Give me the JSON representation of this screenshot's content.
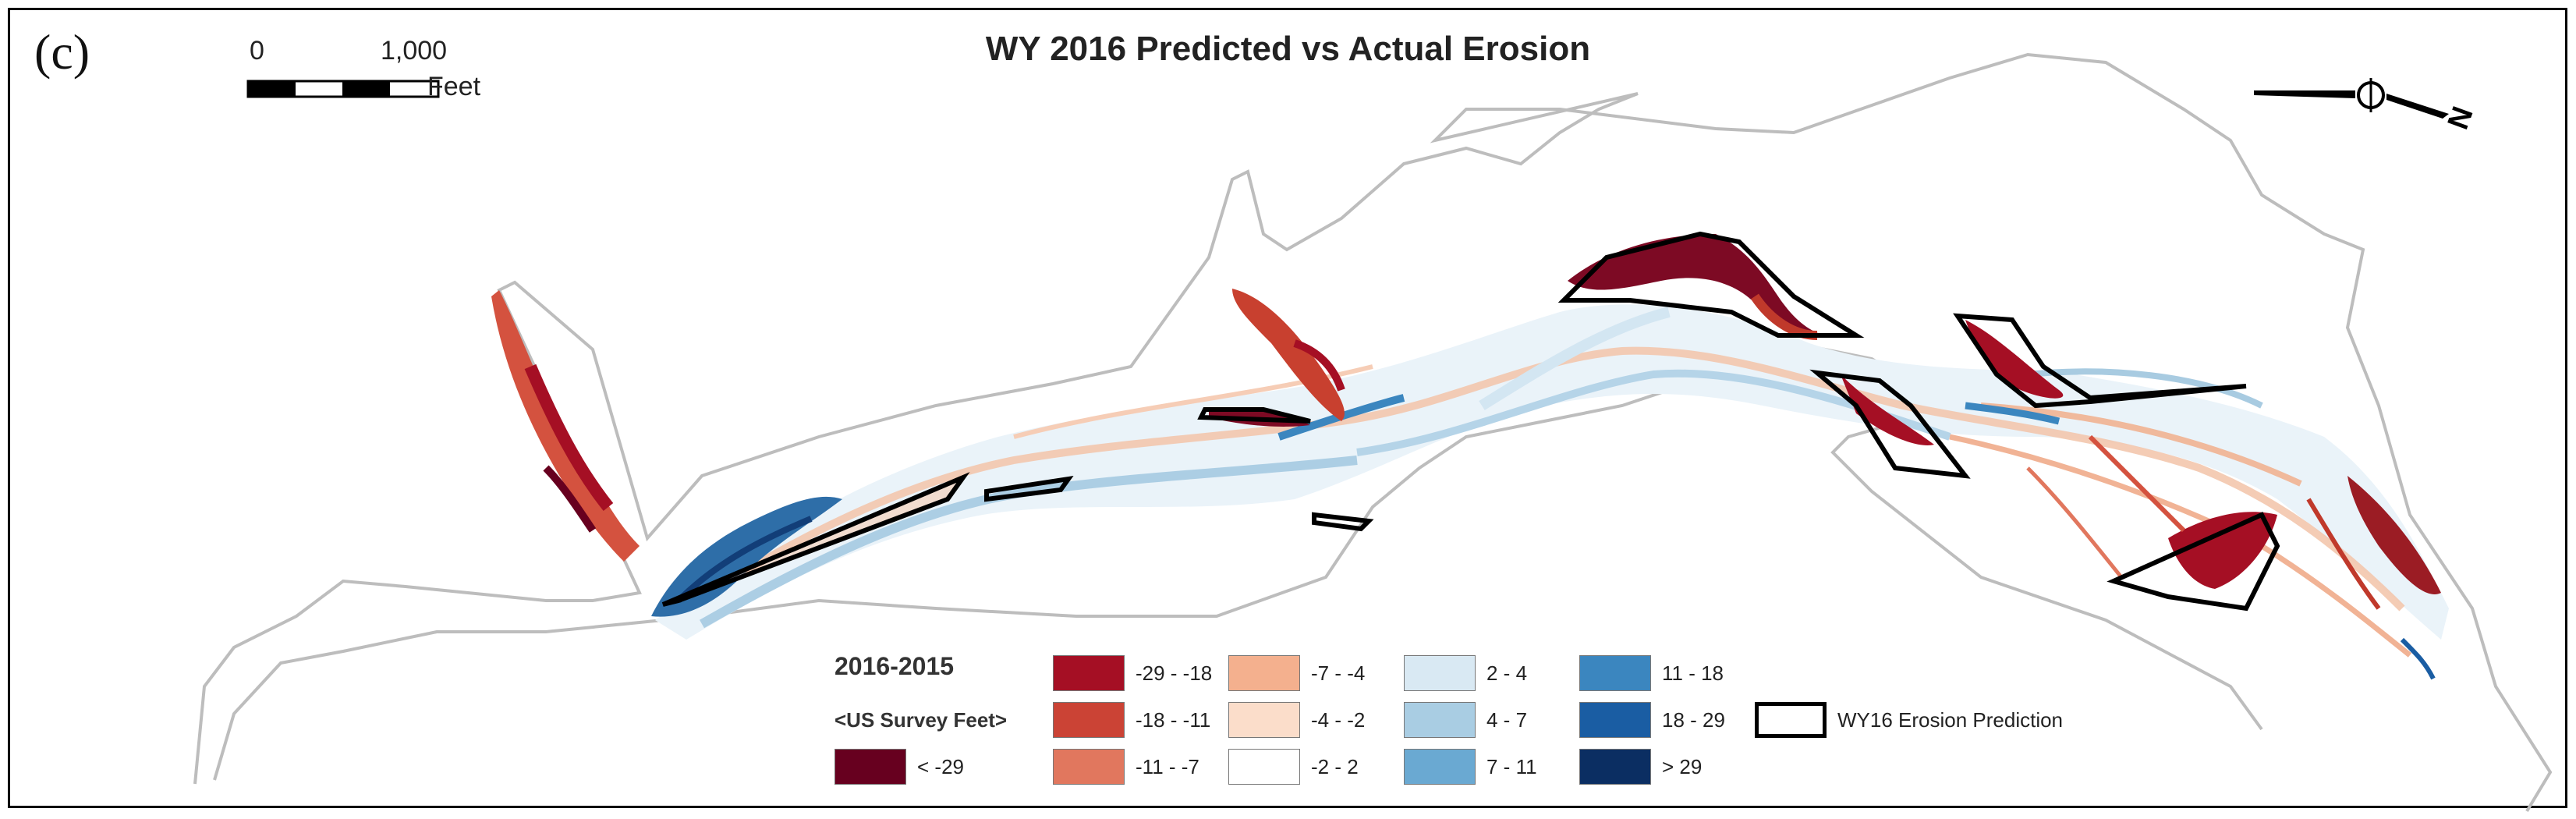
{
  "panel_label": "(c)",
  "title": "WY 2016 Predicted vs Actual Erosion",
  "scale_bar": {
    "start": "0",
    "end": "1,000",
    "units": "Feet"
  },
  "north_arrow": {
    "letter": "N"
  },
  "legend": {
    "title": "2016-2015",
    "units": "<US Survey Feet>",
    "classes": [
      {
        "label": "< -29",
        "color": "#67001f"
      },
      {
        "label": "-29 - -18",
        "color": "#a50f24"
      },
      {
        "label": "-18 - -11",
        "color": "#cb4335"
      },
      {
        "label": "-11 - -7",
        "color": "#e1775e"
      },
      {
        "label": "-7 - -4",
        "color": "#f4b08e"
      },
      {
        "label": "-4 - -2",
        "color": "#fbddca"
      },
      {
        "label": "-2 - 2",
        "color": "#ffffff"
      },
      {
        "label": "2 - 4",
        "color": "#d9e9f3"
      },
      {
        "label": "4 - 7",
        "color": "#a9cde3"
      },
      {
        "label": "7 - 11",
        "color": "#6aa9d2"
      },
      {
        "label": "11 - 18",
        "color": "#3b86bf"
      },
      {
        "label": "18 - 29",
        "color": "#1a5da3"
      },
      {
        "label": "> 29",
        "color": "#0b2e62"
      }
    ],
    "prediction_label": "WY16 Erosion Prediction"
  }
}
